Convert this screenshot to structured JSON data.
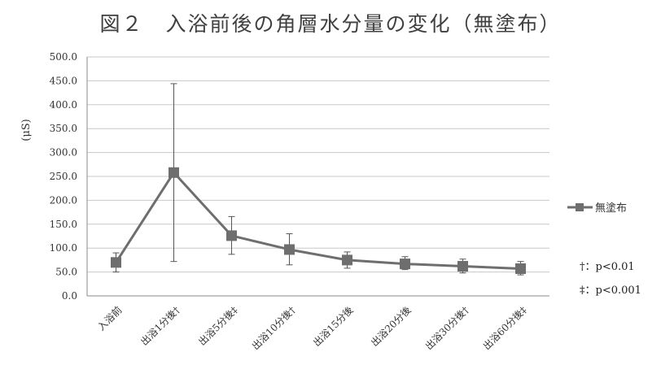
{
  "chart_data": {
    "type": "line",
    "title": "図２　入浴前後の角層水分量の変化（無塗布）",
    "ylabel": "(μS)",
    "xlabel": "",
    "ylim": [
      0,
      500
    ],
    "ytick_step": 50,
    "yticks": [
      "0.0",
      "50.0",
      "100.0",
      "150.0",
      "200.0",
      "250.0",
      "300.0",
      "350.0",
      "400.0",
      "450.0",
      "500.0"
    ],
    "grid": true,
    "legend_position": "right",
    "categories": [
      "入浴前",
      "出浴1分後†",
      "出浴5分後‡",
      "出浴10分後†",
      "出浴15分後",
      "出浴20分後",
      "出浴30分後†",
      "出浴60分後‡"
    ],
    "series": [
      {
        "name": "無塗布",
        "color": "#6e6e6e",
        "marker": "square",
        "values": [
          70,
          258,
          126,
          97,
          75,
          67,
          62,
          57
        ],
        "error_low": [
          50,
          72,
          87,
          65,
          58,
          55,
          48,
          44
        ],
        "error_high": [
          90,
          444,
          166,
          130,
          92,
          82,
          77,
          72
        ]
      }
    ],
    "notes": [
      "†：p<0.01",
      "‡：p<0.001"
    ]
  }
}
